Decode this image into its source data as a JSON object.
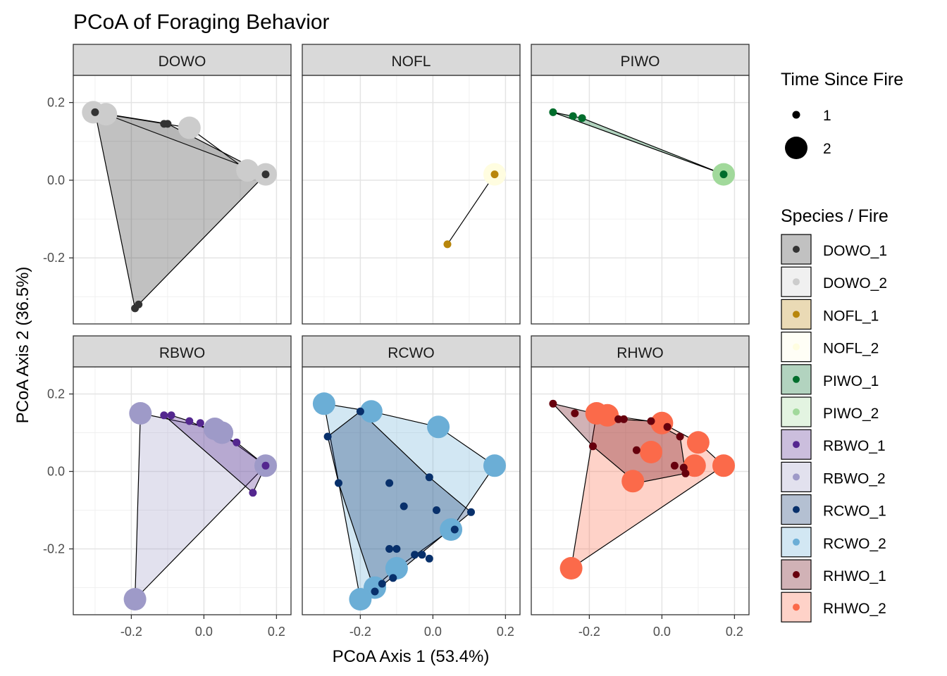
{
  "chart_data": {
    "type": "scatter",
    "title": "PCoA of Foraging Behavior",
    "xlabel": "PCoA Axis 1 (53.4%)",
    "ylabel": "PCoA Axis 2 (36.5%)",
    "xlim": [
      -0.36,
      0.24
    ],
    "ylim": [
      -0.37,
      0.27
    ],
    "x_ticks": [
      -0.2,
      0.0,
      0.2
    ],
    "x_tick_labels": [
      "-0.2",
      "0.0",
      "0.2"
    ],
    "y_ticks": [
      -0.2,
      0.0,
      0.2
    ],
    "y_tick_labels": [
      "-0.2",
      "0.0",
      "0.2"
    ],
    "grid": true,
    "legend_position": "right",
    "size_legend": {
      "title": "Time Since Fire",
      "entries": [
        {
          "label": "1",
          "size": 1
        },
        {
          "label": "2",
          "size": 2
        }
      ]
    },
    "color_legend": {
      "title": "Species / Fire",
      "entries": [
        {
          "label": "DOWO_1",
          "color": "#333333"
        },
        {
          "label": "DOWO_2",
          "color": "#cccccc"
        },
        {
          "label": "NOFL_1",
          "color": "#b8860b"
        },
        {
          "label": "NOFL_2",
          "color": "#fffde0"
        },
        {
          "label": "PIWO_1",
          "color": "#006d2c"
        },
        {
          "label": "PIWO_2",
          "color": "#a1d99b"
        },
        {
          "label": "RBWO_1",
          "color": "#54278f"
        },
        {
          "label": "RBWO_2",
          "color": "#9e9ac8"
        },
        {
          "label": "RCWO_1",
          "color": "#08306b"
        },
        {
          "label": "RCWO_2",
          "color": "#6baed6"
        },
        {
          "label": "RHWO_1",
          "color": "#67000d"
        },
        {
          "label": "RHWO_2",
          "color": "#fb6a4a"
        }
      ]
    },
    "panels": [
      {
        "name": "DOWO",
        "groups": [
          {
            "label": "DOWO_2",
            "color": "#cccccc",
            "size": 2,
            "points": [
              [
                -0.305,
                0.175
              ],
              [
                -0.27,
                0.17
              ],
              [
                -0.04,
                0.135
              ],
              [
                0.12,
                0.025
              ],
              [
                0.17,
                0.015
              ]
            ],
            "hull": [
              [
                -0.305,
                0.175
              ],
              [
                -0.04,
                0.135
              ],
              [
                0.12,
                0.025
              ],
              [
                0.17,
                0.015
              ],
              [
                -0.27,
                0.17
              ]
            ]
          },
          {
            "label": "DOWO_1",
            "color": "#333333",
            "size": 1,
            "points": [
              [
                -0.3,
                0.175
              ],
              [
                -0.1,
                0.145
              ],
              [
                -0.11,
                0.145
              ],
              [
                0.17,
                0.015
              ],
              [
                -0.19,
                -0.33
              ],
              [
                -0.18,
                -0.32
              ]
            ],
            "hull": [
              [
                -0.3,
                0.175
              ],
              [
                -0.1,
                0.145
              ],
              [
                0.17,
                0.015
              ],
              [
                -0.18,
                -0.32
              ],
              [
                -0.19,
                -0.33
              ]
            ]
          }
        ]
      },
      {
        "name": "NOFL",
        "groups": [
          {
            "label": "NOFL_2",
            "color": "#fffde0",
            "size": 2,
            "points": [
              [
                0.17,
                0.015
              ]
            ],
            "hull": []
          },
          {
            "label": "NOFL_1",
            "color": "#b8860b",
            "size": 1,
            "points": [
              [
                0.17,
                0.015
              ],
              [
                0.04,
                -0.165
              ]
            ],
            "hull": [
              [
                0.17,
                0.015
              ],
              [
                0.04,
                -0.165
              ]
            ]
          }
        ]
      },
      {
        "name": "PIWO",
        "groups": [
          {
            "label": "PIWO_2",
            "color": "#a1d99b",
            "size": 2,
            "points": [
              [
                0.17,
                0.015
              ]
            ],
            "hull": []
          },
          {
            "label": "PIWO_1",
            "color": "#006d2c",
            "size": 1,
            "points": [
              [
                -0.3,
                0.175
              ],
              [
                -0.245,
                0.165
              ],
              [
                -0.22,
                0.16
              ],
              [
                0.17,
                0.015
              ]
            ],
            "hull": [
              [
                -0.3,
                0.175
              ],
              [
                -0.22,
                0.16
              ],
              [
                0.17,
                0.015
              ]
            ]
          }
        ]
      },
      {
        "name": "RBWO",
        "groups": [
          {
            "label": "RBWO_2",
            "color": "#9e9ac8",
            "size": 2,
            "points": [
              [
                -0.175,
                0.15
              ],
              [
                0.03,
                0.11
              ],
              [
                0.05,
                0.1
              ],
              [
                0.17,
                0.015
              ],
              [
                -0.19,
                -0.33
              ]
            ],
            "hull": [
              [
                -0.175,
                0.15
              ],
              [
                0.03,
                0.11
              ],
              [
                0.17,
                0.015
              ],
              [
                -0.19,
                -0.33
              ]
            ]
          },
          {
            "label": "RBWO_1",
            "color": "#54278f",
            "size": 1,
            "points": [
              [
                -0.11,
                0.145
              ],
              [
                -0.09,
                0.145
              ],
              [
                -0.04,
                0.13
              ],
              [
                -0.01,
                0.125
              ],
              [
                0.09,
                0.075
              ],
              [
                0.17,
                0.015
              ],
              [
                0.135,
                -0.055
              ]
            ],
            "hull": [
              [
                -0.11,
                0.145
              ],
              [
                -0.09,
                0.145
              ],
              [
                -0.04,
                0.13
              ],
              [
                0.09,
                0.075
              ],
              [
                0.17,
                0.015
              ],
              [
                0.135,
                -0.055
              ]
            ]
          }
        ]
      },
      {
        "name": "RCWO",
        "groups": [
          {
            "label": "RCWO_2",
            "color": "#6baed6",
            "size": 2,
            "points": [
              [
                -0.3,
                0.175
              ],
              [
                -0.17,
                0.155
              ],
              [
                0.015,
                0.115
              ],
              [
                0.17,
                0.015
              ],
              [
                0.05,
                -0.15
              ],
              [
                -0.1,
                -0.25
              ],
              [
                -0.16,
                -0.3
              ],
              [
                -0.2,
                -0.33
              ]
            ],
            "hull": [
              [
                -0.3,
                0.175
              ],
              [
                -0.17,
                0.155
              ],
              [
                0.015,
                0.115
              ],
              [
                0.17,
                0.015
              ],
              [
                0.05,
                -0.15
              ],
              [
                -0.1,
                -0.25
              ],
              [
                -0.2,
                -0.33
              ]
            ]
          },
          {
            "label": "RCWO_1",
            "color": "#08306b",
            "size": 1,
            "points": [
              [
                -0.2,
                0.155
              ],
              [
                -0.29,
                0.09
              ],
              [
                -0.26,
                -0.03
              ],
              [
                -0.12,
                -0.03
              ],
              [
                -0.08,
                -0.09
              ],
              [
                -0.01,
                -0.015
              ],
              [
                0.01,
                -0.1
              ],
              [
                0.06,
                -0.15
              ],
              [
                0.105,
                -0.105
              ],
              [
                -0.12,
                -0.2
              ],
              [
                -0.1,
                -0.2
              ],
              [
                -0.05,
                -0.215
              ],
              [
                -0.03,
                -0.215
              ],
              [
                -0.01,
                -0.225
              ],
              [
                -0.11,
                -0.275
              ],
              [
                -0.14,
                -0.29
              ],
              [
                -0.16,
                -0.31
              ]
            ],
            "hull": [
              [
                -0.2,
                0.155
              ],
              [
                -0.01,
                -0.015
              ],
              [
                0.105,
                -0.105
              ],
              [
                -0.16,
                -0.31
              ],
              [
                -0.26,
                -0.03
              ],
              [
                -0.29,
                0.09
              ]
            ]
          }
        ]
      },
      {
        "name": "RHWO",
        "groups": [
          {
            "label": "RHWO_2",
            "color": "#fb6a4a",
            "size": 2,
            "points": [
              [
                -0.18,
                0.15
              ],
              [
                -0.15,
                0.145
              ],
              [
                0.0,
                0.125
              ],
              [
                0.1,
                0.075
              ],
              [
                -0.03,
                0.05
              ],
              [
                0.09,
                0.015
              ],
              [
                0.17,
                0.015
              ],
              [
                -0.08,
                -0.025
              ],
              [
                -0.25,
                -0.25
              ]
            ],
            "hull": [
              [
                -0.18,
                0.15
              ],
              [
                0.0,
                0.125
              ],
              [
                0.1,
                0.075
              ],
              [
                0.17,
                0.015
              ],
              [
                -0.25,
                -0.25
              ]
            ]
          },
          {
            "label": "RHWO_1",
            "color": "#67000d",
            "size": 1,
            "points": [
              [
                -0.3,
                0.175
              ],
              [
                -0.24,
                0.15
              ],
              [
                -0.12,
                0.135
              ],
              [
                -0.105,
                0.135
              ],
              [
                -0.03,
                0.13
              ],
              [
                0.015,
                0.115
              ],
              [
                0.05,
                0.09
              ],
              [
                -0.19,
                0.065
              ],
              [
                -0.07,
                0.055
              ],
              [
                0.035,
                0.015
              ],
              [
                0.06,
                0.01
              ],
              [
                0.065,
                -0.005
              ]
            ],
            "hull": [
              [
                -0.3,
                0.175
              ],
              [
                -0.12,
                0.135
              ],
              [
                -0.03,
                0.13
              ],
              [
                0.05,
                0.09
              ],
              [
                0.065,
                -0.005
              ],
              [
                -0.07,
                -0.03
              ],
              [
                -0.19,
                0.065
              ]
            ]
          }
        ]
      }
    ]
  }
}
